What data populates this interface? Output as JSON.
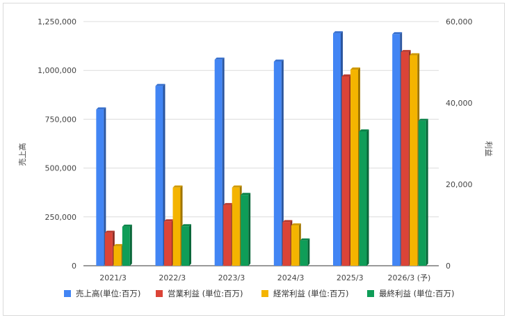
{
  "chart_data": {
    "type": "bar",
    "categories": [
      "2021/3",
      "2022/3",
      "2023/3",
      "2024/3",
      "2025/3",
      "2026/3 (予)"
    ],
    "left_axis": {
      "label": "売上高",
      "ylim": [
        0,
        1250000
      ],
      "ticks": [
        0,
        250000,
        500000,
        750000,
        1000000,
        1250000
      ],
      "tick_labels": [
        "0",
        "250,000",
        "500,000",
        "750,000",
        "1,000,000",
        "1,250,000"
      ]
    },
    "right_axis": {
      "label": "利益",
      "ylim": [
        0,
        60000
      ],
      "ticks": [
        0,
        20000,
        40000,
        60000
      ],
      "tick_labels": [
        "0",
        "20,000",
        "40,000",
        "60,000"
      ]
    },
    "series": [
      {
        "name": "売上高(単位:百万)",
        "axis": "left",
        "color": "#4285f4",
        "values": [
          800000,
          920000,
          1055000,
          1045000,
          1190000,
          1185000
        ]
      },
      {
        "name": "営業利益 (単位:百万)",
        "axis": "right",
        "color": "#db4437",
        "values": [
          8100,
          10900,
          14900,
          10700,
          46500,
          52500
        ]
      },
      {
        "name": "経常利益 (単位:百万)",
        "axis": "right",
        "color": "#f4b400",
        "values": [
          4800,
          19200,
          19200,
          9900,
          48200,
          51700
        ]
      },
      {
        "name": "最終利益 (単位:百万)",
        "axis": "right",
        "color": "#0f9d58",
        "values": [
          9600,
          9700,
          17400,
          6200,
          33000,
          35600
        ]
      }
    ],
    "grid": true,
    "legend_position": "bottom"
  }
}
